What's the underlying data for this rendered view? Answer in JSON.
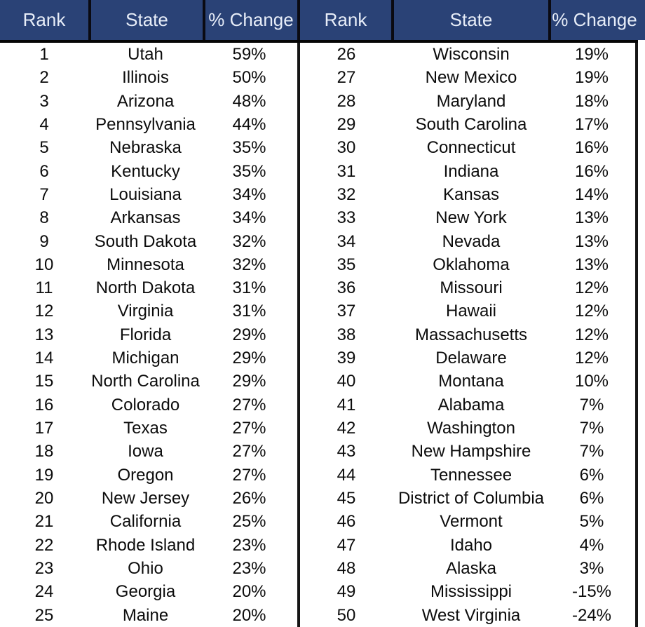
{
  "title": "State % Change Ranking Table",
  "colors": {
    "header_bg": "#2A4276",
    "header_text": "#E7EDF8",
    "border": "#0a0a12",
    "body_bg": "#FFFFFF",
    "body_text": "#0c0c0c"
  },
  "header": {
    "left": [
      "Rank",
      "State",
      "% Change"
    ],
    "right": [
      "Rank",
      "State",
      "% Change"
    ]
  },
  "chart_data": {
    "type": "table",
    "columns": [
      "Rank",
      "State",
      "% Change"
    ],
    "layout": "two side-by-side panels, ranks 1-25 left, 26-50 right",
    "left_rows": [
      {
        "rank": "1",
        "state": "Utah",
        "change": "59%"
      },
      {
        "rank": "2",
        "state": "Illinois",
        "change": "50%"
      },
      {
        "rank": "3",
        "state": "Arizona",
        "change": "48%"
      },
      {
        "rank": "4",
        "state": "Pennsylvania",
        "change": "44%"
      },
      {
        "rank": "5",
        "state": "Nebraska",
        "change": "35%"
      },
      {
        "rank": "6",
        "state": "Kentucky",
        "change": "35%"
      },
      {
        "rank": "7",
        "state": "Louisiana",
        "change": "34%"
      },
      {
        "rank": "8",
        "state": "Arkansas",
        "change": "34%"
      },
      {
        "rank": "9",
        "state": "South Dakota",
        "change": "32%"
      },
      {
        "rank": "10",
        "state": "Minnesota",
        "change": "32%"
      },
      {
        "rank": "11",
        "state": "North Dakota",
        "change": "31%"
      },
      {
        "rank": "12",
        "state": "Virginia",
        "change": "31%"
      },
      {
        "rank": "13",
        "state": "Florida",
        "change": "29%"
      },
      {
        "rank": "14",
        "state": "Michigan",
        "change": "29%"
      },
      {
        "rank": "15",
        "state": "North Carolina",
        "change": "29%"
      },
      {
        "rank": "16",
        "state": "Colorado",
        "change": "27%"
      },
      {
        "rank": "17",
        "state": "Texas",
        "change": "27%"
      },
      {
        "rank": "18",
        "state": "Iowa",
        "change": "27%"
      },
      {
        "rank": "19",
        "state": "Oregon",
        "change": "27%"
      },
      {
        "rank": "20",
        "state": "New Jersey",
        "change": "26%"
      },
      {
        "rank": "21",
        "state": "California",
        "change": "25%"
      },
      {
        "rank": "22",
        "state": "Rhode Island",
        "change": "23%"
      },
      {
        "rank": "23",
        "state": "Ohio",
        "change": "23%"
      },
      {
        "rank": "24",
        "state": "Georgia",
        "change": "20%"
      },
      {
        "rank": "25",
        "state": "Maine",
        "change": "20%"
      }
    ],
    "right_rows": [
      {
        "rank": "26",
        "state": "Wisconsin",
        "change": "19%"
      },
      {
        "rank": "27",
        "state": "New Mexico",
        "change": "19%"
      },
      {
        "rank": "28",
        "state": "Maryland",
        "change": "18%"
      },
      {
        "rank": "29",
        "state": "South Carolina",
        "change": "17%"
      },
      {
        "rank": "30",
        "state": "Connecticut",
        "change": "16%"
      },
      {
        "rank": "31",
        "state": "Indiana",
        "change": "16%"
      },
      {
        "rank": "32",
        "state": "Kansas",
        "change": "14%"
      },
      {
        "rank": "33",
        "state": "New York",
        "change": "13%"
      },
      {
        "rank": "34",
        "state": "Nevada",
        "change": "13%"
      },
      {
        "rank": "35",
        "state": "Oklahoma",
        "change": "13%"
      },
      {
        "rank": "36",
        "state": "Missouri",
        "change": "12%"
      },
      {
        "rank": "37",
        "state": "Hawaii",
        "change": "12%"
      },
      {
        "rank": "38",
        "state": "Massachusetts",
        "change": "12%"
      },
      {
        "rank": "39",
        "state": "Delaware",
        "change": "12%"
      },
      {
        "rank": "40",
        "state": "Montana",
        "change": "10%"
      },
      {
        "rank": "41",
        "state": "Alabama",
        "change": "7%"
      },
      {
        "rank": "42",
        "state": "Washington",
        "change": "7%"
      },
      {
        "rank": "43",
        "state": "New Hampshire",
        "change": "7%"
      },
      {
        "rank": "44",
        "state": "Tennessee",
        "change": "6%"
      },
      {
        "rank": "45",
        "state": "District of Columbia",
        "change": "6%"
      },
      {
        "rank": "46",
        "state": "Vermont",
        "change": "5%"
      },
      {
        "rank": "47",
        "state": "Idaho",
        "change": "4%"
      },
      {
        "rank": "48",
        "state": "Alaska",
        "change": "3%"
      },
      {
        "rank": "49",
        "state": "Mississippi",
        "change": "-15%"
      },
      {
        "rank": "50",
        "state": "West Virginia",
        "change": "-24%"
      }
    ]
  }
}
